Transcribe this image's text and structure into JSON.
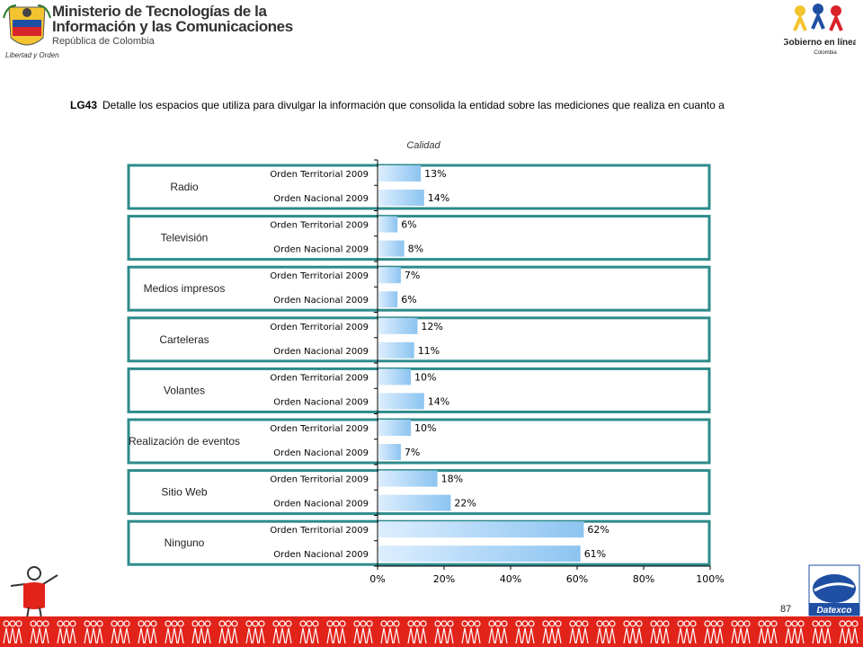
{
  "header": {
    "ministry_line1": "Ministerio de Tecnologías de la",
    "ministry_line2": "Información y las Comunicaciones",
    "ministry_line3": "República de Colombia",
    "seal_caption": "Libertad y Orden",
    "right_logo_text": "Gobierno en línea",
    "right_logo_sub": "Colombia"
  },
  "question": {
    "code": "LG43",
    "text": "Detalle los espacios que utiliza para divulgar la información que consolida la entidad sobre las mediciones que realiza en cuanto a"
  },
  "subtitle": "Calidad",
  "chart_data": {
    "type": "bar",
    "orientation": "horizontal",
    "xlim": [
      0,
      100
    ],
    "x_ticks": [
      "0%",
      "20%",
      "40%",
      "60%",
      "80%",
      "100%"
    ],
    "series_labels": [
      "Orden Territorial 2009",
      "Orden Nacional 2009"
    ],
    "groups": [
      {
        "category": "Radio",
        "values": [
          13,
          14
        ],
        "labels": [
          "13%",
          "14%"
        ]
      },
      {
        "category": "Televisión",
        "values": [
          6,
          8
        ],
        "labels": [
          "6%",
          "8%"
        ]
      },
      {
        "category": "Medios impresos",
        "values": [
          7,
          6
        ],
        "labels": [
          "7%",
          "6%"
        ]
      },
      {
        "category": "Carteleras",
        "values": [
          12,
          11
        ],
        "labels": [
          "12%",
          "11%"
        ]
      },
      {
        "category": "Volantes",
        "values": [
          10,
          14
        ],
        "labels": [
          "10%",
          "14%"
        ]
      },
      {
        "category": "Realización de eventos",
        "values": [
          10,
          7
        ],
        "labels": [
          "10%",
          "7%"
        ]
      },
      {
        "category": "Sitio Web",
        "values": [
          18,
          22
        ],
        "labels": [
          "18%",
          "22%"
        ]
      },
      {
        "category": "Ninguno",
        "values": [
          62,
          61
        ],
        "labels": [
          "62%",
          "61%"
        ]
      }
    ],
    "colors": {
      "bar_light": "#ddeeff",
      "bar_dark": "#8cc4f0",
      "box": "#2e8b8b"
    }
  },
  "footer": {
    "page_number": "87",
    "brand": "Datexco",
    "band_color": "#e2231a"
  }
}
